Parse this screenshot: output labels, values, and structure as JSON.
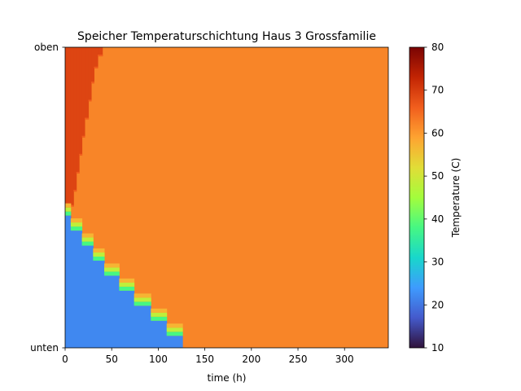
{
  "chart_data": {
    "type": "heatmap",
    "title": "Speicher Temperaturschichtung Haus 3 Grossfamilie",
    "xlabel": "time (h)",
    "ylabel": "",
    "xlim": [
      0,
      347
    ],
    "x_ticks": [
      0,
      50,
      100,
      150,
      200,
      250,
      300
    ],
    "y_tick_labels": {
      "top": "oben",
      "bottom": "unten"
    },
    "colorbar": {
      "label": "Temperature (C)",
      "range": [
        10,
        80
      ],
      "ticks": [
        10,
        20,
        30,
        40,
        50,
        60,
        70,
        80
      ],
      "colormap": "turbo"
    },
    "grid": false,
    "background_temperature": 62,
    "cold_zone": {
      "temperature": 22,
      "mixing_layer_temperatures": [
        38,
        48,
        57
      ],
      "steps": [
        {
          "x_start": 0,
          "x_end": 6,
          "boundary_fraction": 0.44
        },
        {
          "x_start": 6,
          "x_end": 18,
          "boundary_fraction": 0.39
        },
        {
          "x_start": 18,
          "x_end": 30,
          "boundary_fraction": 0.34
        },
        {
          "x_start": 30,
          "x_end": 42,
          "boundary_fraction": 0.29
        },
        {
          "x_start": 42,
          "x_end": 58,
          "boundary_fraction": 0.24
        },
        {
          "x_start": 58,
          "x_end": 74,
          "boundary_fraction": 0.19
        },
        {
          "x_start": 74,
          "x_end": 92,
          "boundary_fraction": 0.14
        },
        {
          "x_start": 92,
          "x_end": 109,
          "boundary_fraction": 0.09
        },
        {
          "x_start": 109,
          "x_end": 126,
          "boundary_fraction": 0.04
        }
      ]
    },
    "hot_zone": {
      "temperature": 69,
      "edge_temperature": 66,
      "steps": [
        {
          "x_start": 0,
          "x_end": 2,
          "depth_fraction": 0.65
        },
        {
          "x_start": 2,
          "x_end": 4,
          "depth_fraction": 0.61
        },
        {
          "x_start": 4,
          "x_end": 6,
          "depth_fraction": 0.57
        },
        {
          "x_start": 6,
          "x_end": 9,
          "depth_fraction": 0.53
        },
        {
          "x_start": 9,
          "x_end": 12,
          "depth_fraction": 0.48
        },
        {
          "x_start": 12,
          "x_end": 15,
          "depth_fraction": 0.42
        },
        {
          "x_start": 15,
          "x_end": 18,
          "depth_fraction": 0.36
        },
        {
          "x_start": 18,
          "x_end": 21,
          "depth_fraction": 0.3
        },
        {
          "x_start": 21,
          "x_end": 25,
          "depth_fraction": 0.24
        },
        {
          "x_start": 25,
          "x_end": 28,
          "depth_fraction": 0.18
        },
        {
          "x_start": 28,
          "x_end": 31,
          "depth_fraction": 0.12
        },
        {
          "x_start": 31,
          "x_end": 35,
          "depth_fraction": 0.07
        },
        {
          "x_start": 35,
          "x_end": 40,
          "depth_fraction": 0.03
        }
      ]
    }
  }
}
